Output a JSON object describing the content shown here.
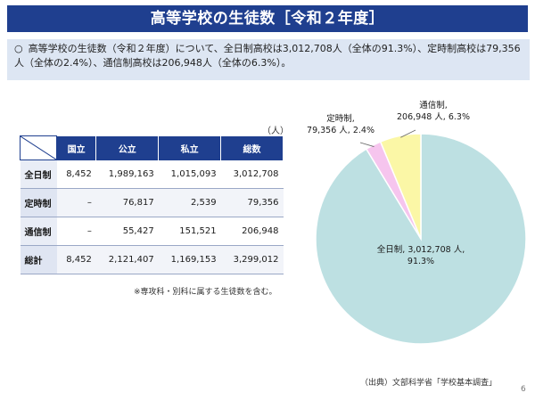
{
  "title": "高等学校の生徒数［令和２年度］",
  "summary": {
    "bullet": "○",
    "text": "高等学校の生徒数（令和２年度）について、全日制高校は3,012,708人（全体の91.3%）、定時制高校は79,356人（全体の2.4%）、通信制高校は206,948人（全体の6.3%）。"
  },
  "table": {
    "unit": "（人）",
    "headers": [
      "国立",
      "公立",
      "私立",
      "総数"
    ],
    "rows": [
      {
        "label": "全日制",
        "cells": [
          "8,452",
          "1,989,163",
          "1,015,093",
          "3,012,708"
        ]
      },
      {
        "label": "定時制",
        "cells": [
          "–",
          "76,817",
          "2,539",
          "79,356"
        ]
      },
      {
        "label": "通信制",
        "cells": [
          "–",
          "55,427",
          "151,521",
          "206,948"
        ]
      },
      {
        "label": "総計",
        "cells": [
          "8,452",
          "2,121,407",
          "1,169,153",
          "3,299,012"
        ]
      }
    ],
    "note": "※専攻科・別科に属する生徒数を含む。"
  },
  "source": "（出典）文部科学省「学校基本調査」",
  "page_number": "6",
  "chart_data": {
    "type": "pie",
    "title": "",
    "slices": [
      {
        "name": "全日制",
        "value": 3012708,
        "percent": 91.3,
        "color": "#bde0e2",
        "label_line1": "全日制, 3,012,708 人,",
        "label_line2": "91.3%"
      },
      {
        "name": "定時制",
        "value": 79356,
        "percent": 2.4,
        "color": "#f6c5ee",
        "label_line1": "定時制,",
        "label_line2": "79,356 人, 2.4%"
      },
      {
        "name": "通信制",
        "value": 206948,
        "percent": 6.3,
        "color": "#fbf7a6",
        "label_line1": "通信制,",
        "label_line2": "206,948 人, 6.3%"
      }
    ]
  }
}
